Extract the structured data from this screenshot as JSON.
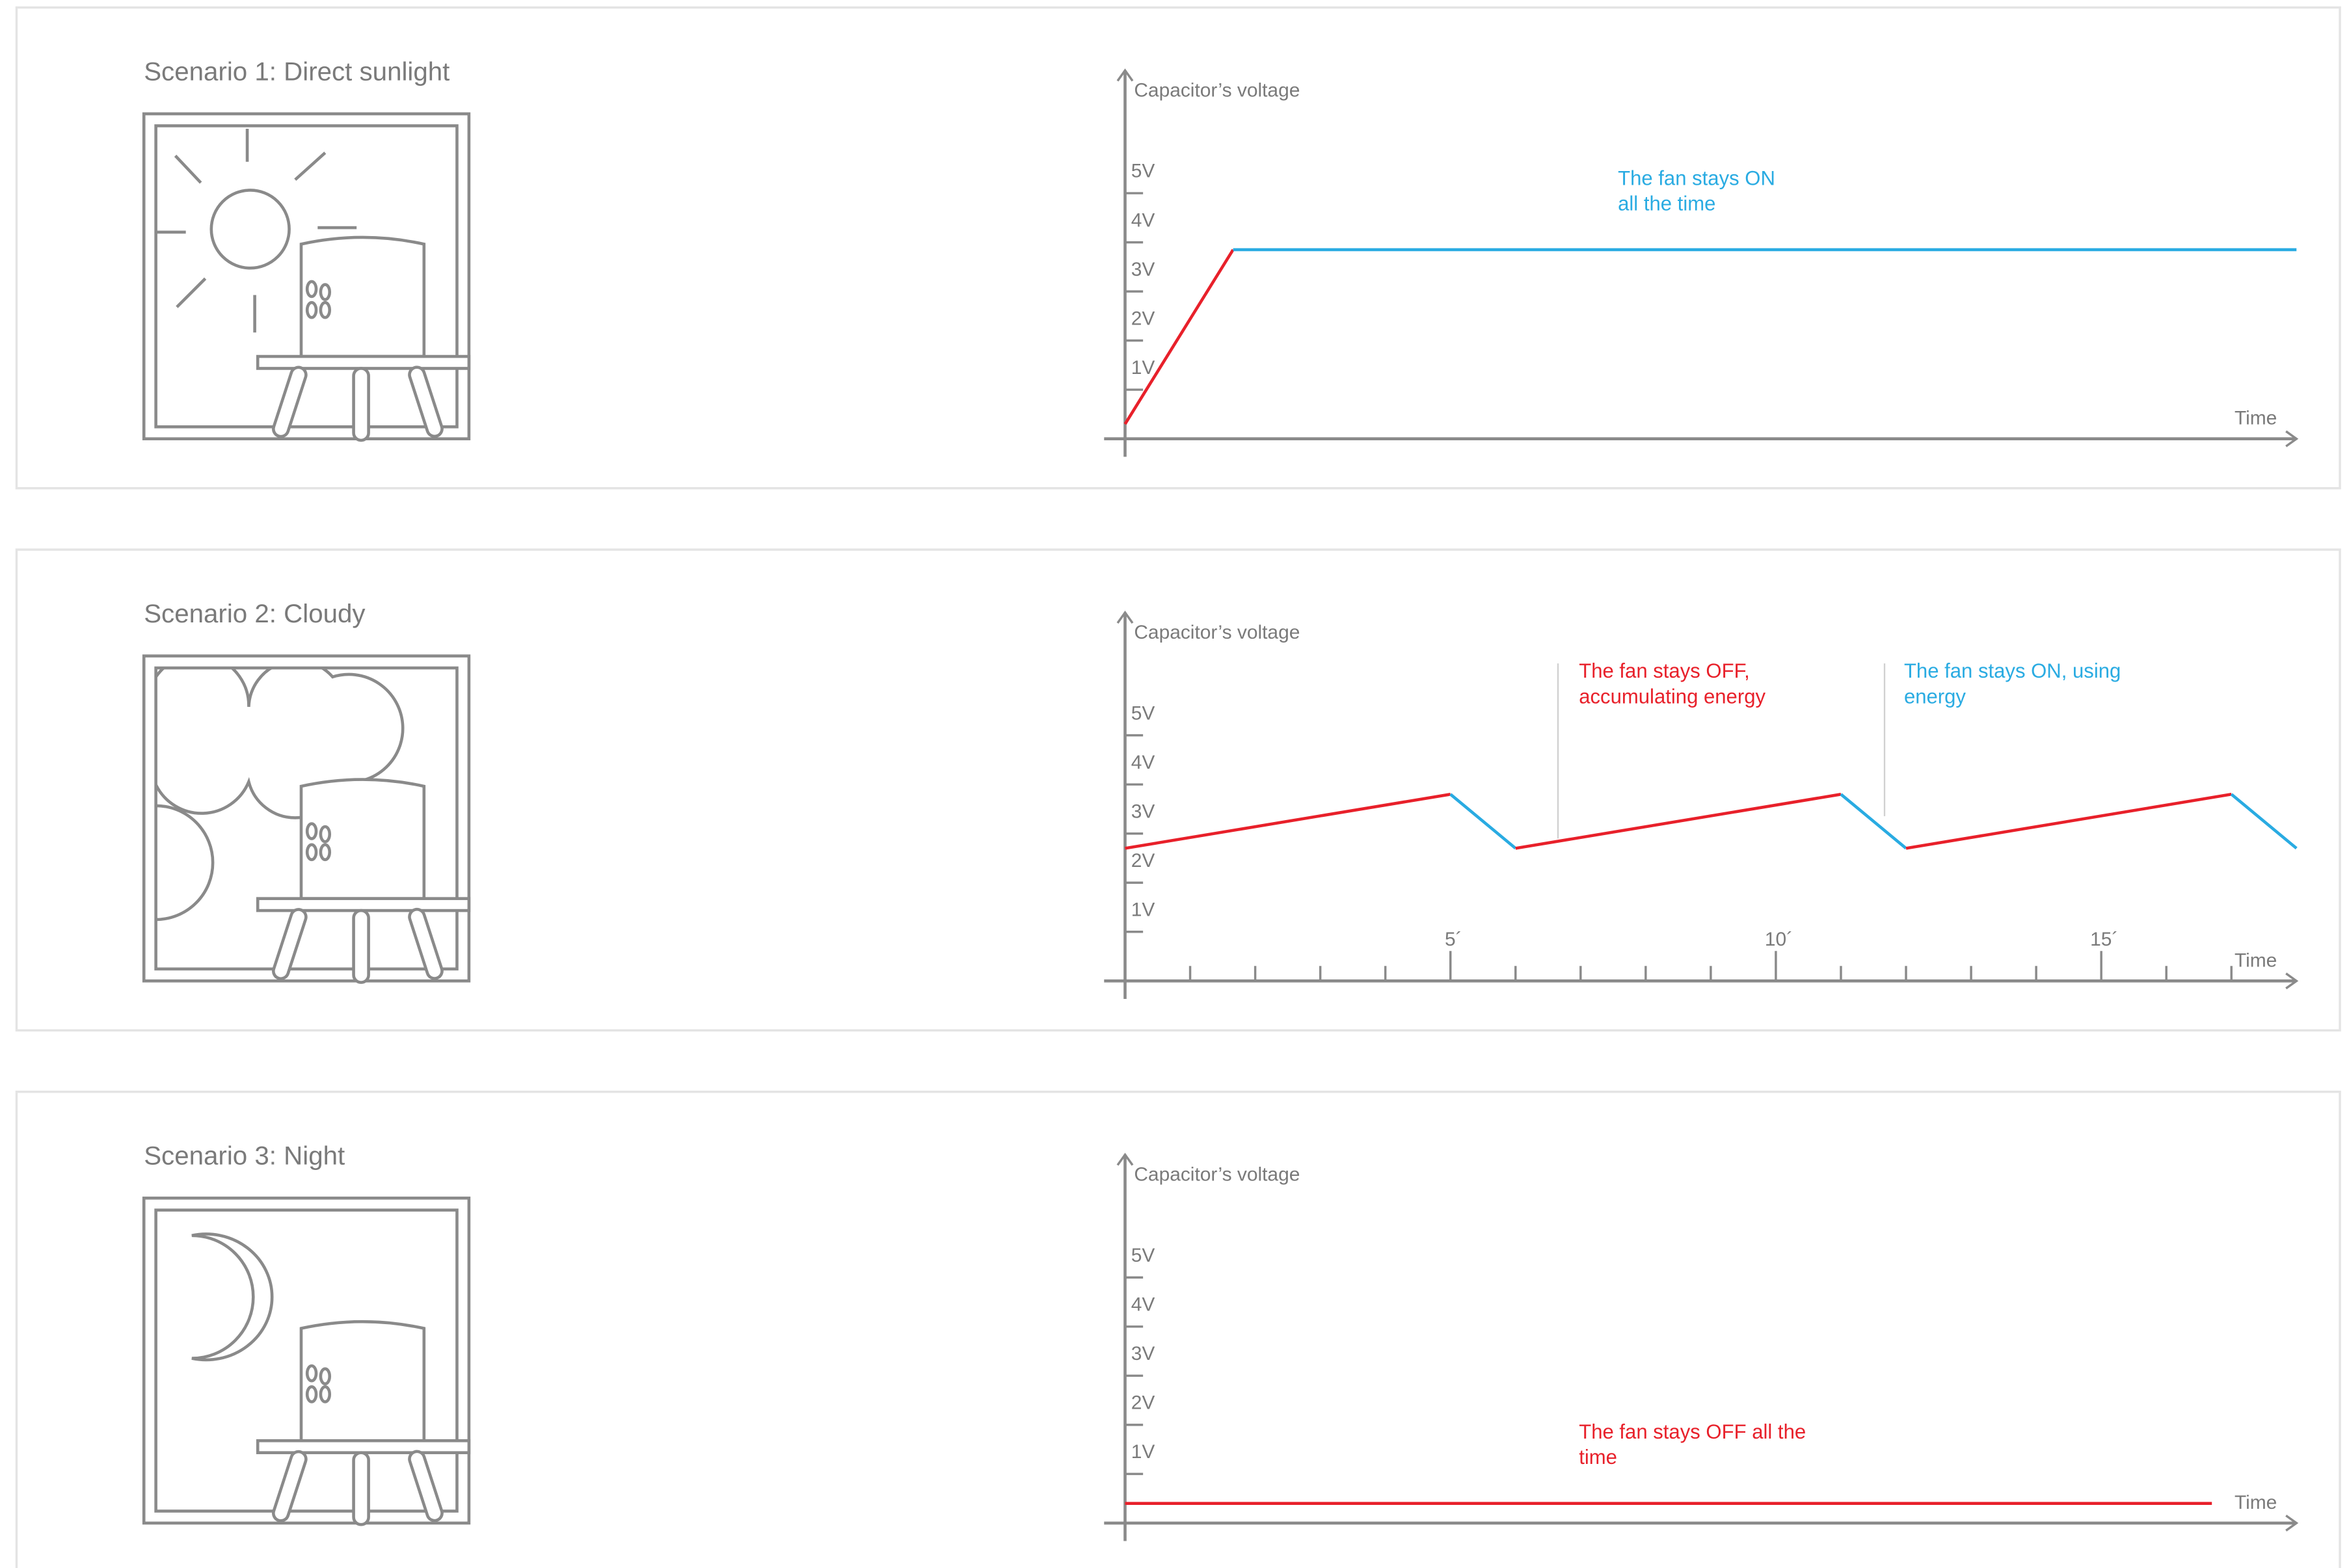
{
  "chart_data": [
    {
      "type": "line",
      "title": "Scenario 1: Direct sunlight",
      "y_label": "Capacitor’s voltage",
      "x_label": "Time",
      "xlim": [
        0,
        18
      ],
      "ylim": [
        0,
        7.5
      ],
      "yticks": [
        {
          "value": 1,
          "label": "1V"
        },
        {
          "value": 2,
          "label": "2V"
        },
        {
          "value": 3,
          "label": "3V"
        },
        {
          "value": 4,
          "label": "4V"
        },
        {
          "value": 5,
          "label": "5V"
        }
      ],
      "series": [
        {
          "color": "#e8202a",
          "x": [
            0,
            1.66
          ],
          "values": [
            0.3,
            3.85
          ]
        },
        {
          "color": "#29abe2",
          "x": [
            1.66,
            18
          ],
          "values": [
            3.85,
            3.85
          ]
        }
      ],
      "annotations": [
        {
          "text": [
            "The fan stays ON",
            "all the time"
          ],
          "color": "#29abe2"
        }
      ]
    },
    {
      "type": "line",
      "title": "Scenario 2: Cloudy",
      "y_label": "Capacitor’s voltage",
      "x_label": "Time",
      "xlim": [
        0,
        18
      ],
      "ylim": [
        0,
        7.5
      ],
      "yticks": [
        {
          "value": 1,
          "label": "1V"
        },
        {
          "value": 2,
          "label": "2V"
        },
        {
          "value": 3,
          "label": "3V"
        },
        {
          "value": 4,
          "label": "4V"
        },
        {
          "value": 5,
          "label": "5V"
        }
      ],
      "xticks": [
        {
          "value": 5,
          "label": "5´"
        },
        {
          "value": 10,
          "label": "10´"
        },
        {
          "value": 15,
          "label": "15´"
        }
      ],
      "xticks_minor": [
        1,
        2,
        3,
        4,
        6,
        7,
        8,
        9,
        11,
        12,
        13,
        14,
        16,
        17
      ],
      "series": [
        {
          "color": "#e8202a",
          "x": [
            0,
            5
          ],
          "values": [
            2.7,
            3.8
          ]
        },
        {
          "color": "#29abe2",
          "x": [
            5,
            6
          ],
          "values": [
            3.8,
            2.7
          ]
        },
        {
          "color": "#e8202a",
          "x": [
            6,
            11
          ],
          "values": [
            2.7,
            3.8
          ]
        },
        {
          "color": "#29abe2",
          "x": [
            11,
            12
          ],
          "values": [
            3.8,
            2.7
          ]
        },
        {
          "color": "#e8202a",
          "x": [
            12,
            17
          ],
          "values": [
            2.7,
            3.8
          ]
        },
        {
          "color": "#29abe2",
          "x": [
            17,
            18
          ],
          "values": [
            3.8,
            2.7
          ]
        }
      ],
      "annotations": [
        {
          "text": [
            "The fan stays OFF,",
            "accumulating energy"
          ],
          "color": "#e8202a"
        },
        {
          "text": [
            "The fan stays ON, using",
            "energy"
          ],
          "color": "#29abe2"
        }
      ]
    },
    {
      "type": "line",
      "title": "Scenario 3: Night",
      "y_label": "Capacitor’s voltage",
      "x_label": "Time",
      "xlim": [
        0,
        18
      ],
      "ylim": [
        0,
        7.5
      ],
      "yticks": [
        {
          "value": 1,
          "label": "1V"
        },
        {
          "value": 2,
          "label": "2V"
        },
        {
          "value": 3,
          "label": "3V"
        },
        {
          "value": 4,
          "label": "4V"
        },
        {
          "value": 5,
          "label": "5V"
        }
      ],
      "series": [
        {
          "color": "#e8202a",
          "x": [
            0,
            16.7
          ],
          "values": [
            0.4,
            0.4
          ]
        }
      ],
      "annotations": [
        {
          "text": [
            "The fan stays OFF all the",
            "time"
          ],
          "color": "#e8202a"
        }
      ]
    }
  ]
}
